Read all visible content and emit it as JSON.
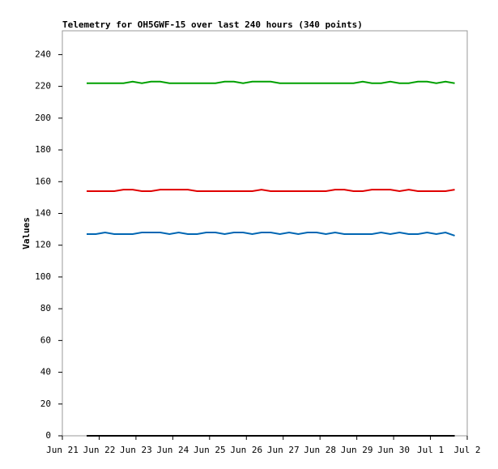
{
  "chart_data": {
    "type": "line",
    "title": "Telemetry for OH5GWF-15 over last 240 hours (340 points)",
    "y_label": "Values",
    "x": [
      0.66,
      0.91,
      1.16,
      1.41,
      1.66,
      1.91,
      2.16,
      2.41,
      2.66,
      2.91,
      3.16,
      3.41,
      3.66,
      3.91,
      4.16,
      4.41,
      4.66,
      4.91,
      5.16,
      5.41,
      5.66,
      5.91,
      6.16,
      6.41,
      6.66,
      6.91,
      7.16,
      7.41,
      7.66,
      7.91,
      8.16,
      8.41,
      8.66,
      8.91,
      9.16,
      9.41,
      9.66,
      9.91,
      10.16,
      10.41,
      10.66
    ],
    "series": [
      {
        "color": "#00a000",
        "values": [
          222,
          222,
          222,
          222,
          222,
          223,
          222,
          223,
          223,
          222,
          222,
          222,
          222,
          222,
          222,
          223,
          223,
          222,
          223,
          223,
          223,
          222,
          222,
          222,
          222,
          222,
          222,
          222,
          222,
          222,
          223,
          222,
          222,
          223,
          222,
          222,
          223,
          223,
          222,
          223,
          222
        ]
      },
      {
        "color": "#e00000",
        "values": [
          154,
          154,
          154,
          154,
          155,
          155,
          154,
          154,
          155,
          155,
          155,
          155,
          154,
          154,
          154,
          154,
          154,
          154,
          154,
          155,
          154,
          154,
          154,
          154,
          154,
          154,
          154,
          155,
          155,
          154,
          154,
          155,
          155,
          155,
          154,
          155,
          154,
          154,
          154,
          154,
          155
        ]
      },
      {
        "color": "#0066b3",
        "values": [
          127,
          127,
          128,
          127,
          127,
          127,
          128,
          128,
          128,
          127,
          128,
          127,
          127,
          128,
          128,
          127,
          128,
          128,
          127,
          128,
          128,
          127,
          128,
          127,
          128,
          128,
          127,
          128,
          127,
          127,
          127,
          127,
          128,
          127,
          128,
          127,
          127,
          128,
          127,
          128,
          126
        ]
      },
      {
        "color": "#000000",
        "values": [
          0,
          0,
          0,
          0,
          0,
          0,
          0,
          0,
          0,
          0,
          0,
          0,
          0,
          0,
          0,
          0,
          0,
          0,
          0,
          0,
          0,
          0,
          0,
          0,
          0,
          0,
          0,
          0,
          0,
          0,
          0,
          0,
          0,
          0,
          0,
          0,
          0,
          0,
          0,
          0,
          0
        ]
      }
    ],
    "xlim": [
      0,
      11
    ],
    "xticks": [
      {
        "value": 0,
        "label": "Jun 21"
      },
      {
        "value": 1,
        "label": "Jun 22"
      },
      {
        "value": 2,
        "label": "Jun 23"
      },
      {
        "value": 3,
        "label": "Jun 24"
      },
      {
        "value": 4,
        "label": "Jun 25"
      },
      {
        "value": 5,
        "label": "Jun 26"
      },
      {
        "value": 6,
        "label": "Jun 27"
      },
      {
        "value": 7,
        "label": "Jun 28"
      },
      {
        "value": 8,
        "label": "Jun 29"
      },
      {
        "value": 9,
        "label": "Jun 30"
      },
      {
        "value": 10,
        "label": "Jul 1"
      },
      {
        "value": 11,
        "label": "Jul 2"
      }
    ],
    "ylim": [
      0,
      255
    ],
    "yticks": [
      0,
      20,
      40,
      60,
      80,
      100,
      120,
      140,
      160,
      180,
      200,
      220,
      240
    ],
    "grid": false
  }
}
